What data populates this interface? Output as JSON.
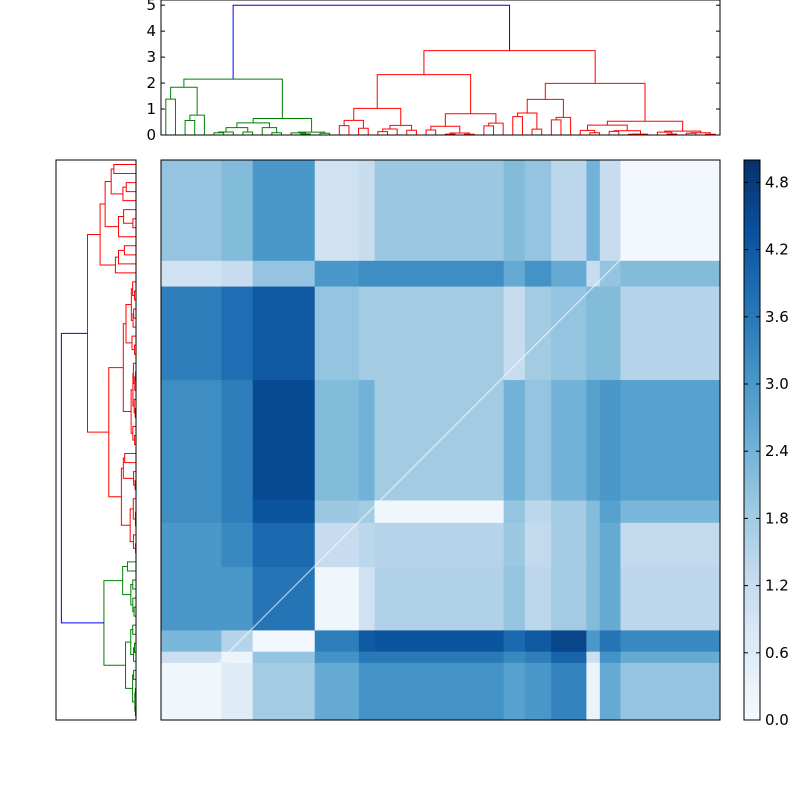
{
  "chart_data": {
    "type": "heatmap",
    "title": "",
    "xlabel": "",
    "ylabel": "",
    "top_dendrogram": {
      "ylim": [
        0,
        5.2
      ],
      "yticks": [
        "0",
        "1",
        "2",
        "3",
        "4",
        "5"
      ],
      "root_height": 5.0,
      "clusters": [
        {
          "color": "#008000",
          "height": 2.15
        },
        {
          "color": "#ff0000",
          "height": 3.25
        }
      ],
      "link_color": "#0000ff"
    },
    "left_dendrogram": {
      "root_height": 5.0,
      "clusters": [
        {
          "color": "#ff0000",
          "height": 3.25
        },
        {
          "color": "#008000",
          "height": 2.15
        }
      ],
      "link_color": "#0000ff"
    },
    "colorbar": {
      "colormap": "Blues",
      "vmin": 0.0,
      "vmax": 5.0,
      "ticks": [
        "0.0",
        "0.6",
        "1.2",
        "1.8",
        "2.4",
        "3.0",
        "3.6",
        "4.2",
        "4.8"
      ],
      "tick_values": [
        0.0,
        0.6,
        1.2,
        1.8,
        2.4,
        3.0,
        3.6,
        4.2,
        4.8
      ]
    },
    "column_blocks": [
      0.108,
      0.164,
      0.275,
      0.354,
      0.382,
      0.613,
      0.651,
      0.698,
      0.761,
      0.785,
      0.822,
      1.0
    ],
    "row_blocks": [
      0.18,
      0.226,
      0.393,
      0.608,
      0.648,
      0.727,
      0.84,
      0.878,
      0.898,
      1.0
    ],
    "cell_values": [
      [
        2.0,
        2.2,
        3.0,
        1.0,
        1.2,
        1.9,
        2.2,
        2.0,
        1.4,
        2.4,
        1.2,
        0.1
      ],
      [
        1.0,
        1.2,
        2.0,
        3.0,
        3.2,
        3.2,
        2.6,
        3.1,
        2.6,
        1.2,
        2.0,
        2.2
      ],
      [
        3.5,
        3.8,
        4.2,
        2.0,
        1.8,
        1.8,
        1.2,
        1.8,
        2.0,
        2.2,
        2.2,
        1.5
      ],
      [
        3.2,
        3.5,
        4.5,
        2.2,
        2.4,
        1.8,
        2.4,
        2.0,
        2.4,
        2.8,
        3.0,
        2.8
      ],
      [
        3.2,
        3.5,
        4.3,
        1.9,
        1.8,
        0.2,
        2.0,
        1.4,
        1.8,
        2.2,
        2.8,
        2.3
      ],
      [
        3.0,
        3.3,
        3.9,
        1.2,
        1.4,
        1.5,
        1.9,
        1.3,
        1.8,
        2.2,
        2.6,
        1.3
      ],
      [
        3.0,
        3.0,
        3.7,
        0.2,
        1.0,
        1.6,
        2.0,
        1.4,
        1.8,
        2.2,
        2.6,
        1.4
      ],
      [
        2.3,
        1.5,
        0.1,
        3.5,
        4.2,
        4.3,
        3.9,
        4.2,
        4.6,
        3.0,
        3.7,
        3.3
      ],
      [
        1.1,
        0.3,
        2.0,
        3.1,
        3.6,
        3.6,
        3.3,
        3.5,
        4.0,
        1.1,
        3.1,
        2.6
      ],
      [
        0.2,
        0.6,
        1.8,
        2.6,
        3.1,
        3.1,
        2.8,
        3.0,
        3.4,
        0.3,
        2.6,
        2.0
      ]
    ]
  }
}
